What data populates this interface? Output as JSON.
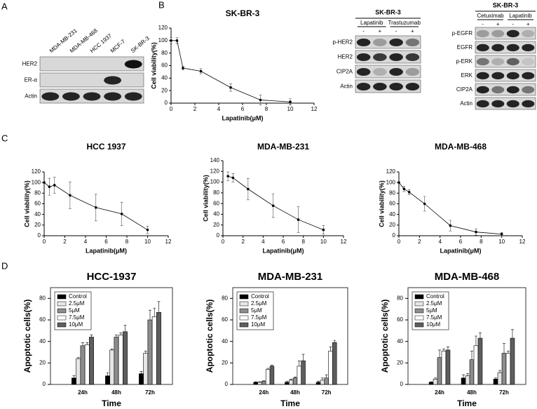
{
  "panel_labels": [
    "A",
    "B",
    "C",
    "D"
  ],
  "blots": {
    "a": {
      "columns": [
        "MDA-MB-231",
        "MDA-MB-468",
        "HCC 1937",
        "MCF-7",
        "SK-BR-3"
      ],
      "rows": [
        "HER2",
        "ER-α",
        "Actin"
      ]
    },
    "b1": {
      "title": "SK-BR-3",
      "groups": [
        "Lapatinib",
        "Trastuzumab"
      ],
      "signs": [
        "-",
        "+",
        "-",
        "+"
      ],
      "rows": [
        "p-HER2",
        "HER2",
        "CIP2A",
        "Actin"
      ]
    },
    "b2": {
      "title": "SK-BR-3",
      "groups": [
        "Cetuximab",
        "Lapatinib"
      ],
      "signs": [
        "-",
        "+",
        "-",
        "+"
      ],
      "rows": [
        "p-EGFR",
        "EGFR",
        "p-ERK",
        "ERK",
        "CIP2A",
        "Actin"
      ]
    }
  },
  "chart_data": [
    {
      "type": "line",
      "title": "SK-BR-3",
      "xlabel": "Lapatinib(μM)",
      "ylabel": "Cell viability(%)",
      "x": [
        0,
        0.5,
        1,
        2.5,
        5,
        7.5,
        10
      ],
      "values": [
        100,
        100,
        56,
        51,
        25,
        5,
        2
      ],
      "errors": [
        5,
        5,
        3,
        4,
        6,
        8,
        5
      ],
      "xlim": [
        0,
        12
      ],
      "xticks": [
        0,
        2,
        4,
        6,
        8,
        10,
        12
      ],
      "ylim": [
        0,
        120
      ],
      "yticks": [
        0,
        20,
        40,
        60,
        80,
        100,
        120
      ],
      "color": "#000000"
    },
    {
      "type": "line",
      "title": "HCC 1937",
      "xlabel": "Lapatinib(μM)",
      "ylabel": "Cell viability(%)",
      "x": [
        0,
        0.5,
        1,
        2.5,
        5,
        7.5,
        10
      ],
      "values": [
        100,
        92,
        95,
        76,
        53,
        41,
        11
      ],
      "errors": [
        0,
        16,
        15,
        25,
        25,
        22,
        7
      ],
      "xlim": [
        0,
        12
      ],
      "xticks": [
        0,
        2,
        4,
        6,
        8,
        10,
        12
      ],
      "ylim": [
        0,
        120
      ],
      "yticks": [
        0,
        20,
        40,
        60,
        80,
        100,
        120
      ],
      "color": "#000000"
    },
    {
      "type": "line",
      "title": "MDA-MB-231",
      "xlabel": "Lapatinib(μM)",
      "ylabel": "Cell viability(%)",
      "x": [
        0.5,
        1,
        2.5,
        5,
        7.5,
        10
      ],
      "values": [
        111,
        108,
        87,
        56,
        30,
        11
      ],
      "errors": [
        8,
        8,
        20,
        22,
        24,
        8
      ],
      "xlim": [
        0,
        12
      ],
      "xticks": [
        0,
        2,
        4,
        6,
        8,
        10,
        12
      ],
      "ylim": [
        0,
        140
      ],
      "yticks": [
        0,
        20,
        40,
        60,
        80,
        100,
        120,
        140
      ],
      "color": "#000000"
    },
    {
      "type": "line",
      "title": "MDA-MB-468",
      "xlabel": "Lapatinib(μM)",
      "ylabel": "Cell viability(%)",
      "x": [
        0,
        0.5,
        1,
        2.5,
        5,
        7.5,
        10
      ],
      "values": [
        100,
        88,
        82,
        60,
        19,
        7,
        3
      ],
      "errors": [
        0,
        5,
        5,
        14,
        10,
        6,
        3
      ],
      "xlim": [
        0,
        12
      ],
      "xticks": [
        0,
        2,
        4,
        6,
        8,
        10,
        12
      ],
      "ylim": [
        0,
        120
      ],
      "yticks": [
        0,
        20,
        40,
        60,
        80,
        100,
        120
      ],
      "color": "#000000"
    },
    {
      "type": "bar",
      "title": "HCC-1937",
      "xlabel": "Time",
      "ylabel": "Apoptotic cells(%)",
      "legend": "top-left",
      "categories": [
        "24h",
        "48h",
        "72h"
      ],
      "ylim": [
        0,
        90
      ],
      "yticks": [
        0,
        20,
        40,
        60,
        80
      ],
      "series": [
        {
          "name": "Control",
          "color": "#000000",
          "values": [
            6,
            8,
            10
          ],
          "errors": [
            2,
            3,
            2
          ]
        },
        {
          "name": "2.5μM",
          "color": "#e6e6e6",
          "values": [
            24,
            32,
            29
          ],
          "errors": [
            1,
            1,
            2
          ]
        },
        {
          "name": "5μM",
          "color": "#8c8c8c",
          "values": [
            36,
            44,
            60
          ],
          "errors": [
            3,
            2,
            9
          ]
        },
        {
          "name": "7.5μM",
          "color": "#ffffff",
          "values": [
            37,
            46,
            63
          ],
          "errors": [
            2,
            2,
            8
          ]
        },
        {
          "name": "10μM",
          "color": "#5e5e5e",
          "values": [
            44,
            49,
            67
          ],
          "errors": [
            2,
            6,
            10
          ]
        }
      ]
    },
    {
      "type": "bar",
      "title": "MDA-MB-231",
      "xlabel": "Time",
      "ylabel": "Apoptotic cells(%)",
      "legend": "top-left",
      "categories": [
        "24h",
        "48h",
        "72h"
      ],
      "ylim": [
        0,
        90
      ],
      "yticks": [
        0,
        20,
        40,
        60,
        80
      ],
      "series": [
        {
          "name": "Control",
          "color": "#000000",
          "values": [
            2,
            2,
            2
          ],
          "errors": [
            0.5,
            1,
            1
          ]
        },
        {
          "name": "2.5μM",
          "color": "#e6e6e6",
          "values": [
            2,
            4,
            4
          ],
          "errors": [
            0.5,
            1,
            2
          ]
        },
        {
          "name": "5μM",
          "color": "#8c8c8c",
          "values": [
            3,
            6,
            6
          ],
          "errors": [
            0.5,
            1,
            3
          ]
        },
        {
          "name": "7.5μM",
          "color": "#ffffff",
          "values": [
            14,
            17,
            31
          ],
          "errors": [
            1,
            5,
            4
          ]
        },
        {
          "name": "10μM",
          "color": "#5e5e5e",
          "values": [
            17,
            22,
            39
          ],
          "errors": [
            1,
            6,
            2
          ]
        }
      ]
    },
    {
      "type": "bar",
      "title": "MDA-MB-468",
      "xlabel": "Time",
      "ylabel": "Apoptotic cells(%)",
      "legend": "top-left",
      "categories": [
        "24h",
        "48h",
        "72h"
      ],
      "ylim": [
        0,
        90
      ],
      "yticks": [
        0,
        20,
        40,
        60,
        80
      ],
      "series": [
        {
          "name": "Control",
          "color": "#000000",
          "values": [
            2,
            6,
            5
          ],
          "errors": [
            0.5,
            3,
            1
          ]
        },
        {
          "name": "2.5μM",
          "color": "#e6e6e6",
          "values": [
            5,
            8,
            11
          ],
          "errors": [
            1,
            2,
            2
          ]
        },
        {
          "name": "5μM",
          "color": "#8c8c8c",
          "values": [
            25,
            23,
            29
          ],
          "errors": [
            7,
            8,
            9
          ]
        },
        {
          "name": "7.5μM",
          "color": "#ffffff",
          "values": [
            31,
            36,
            29
          ],
          "errors": [
            2,
            9,
            2
          ]
        },
        {
          "name": "10μM",
          "color": "#5e5e5e",
          "values": [
            32,
            43,
            43
          ],
          "errors": [
            3,
            5,
            8
          ]
        }
      ]
    }
  ]
}
